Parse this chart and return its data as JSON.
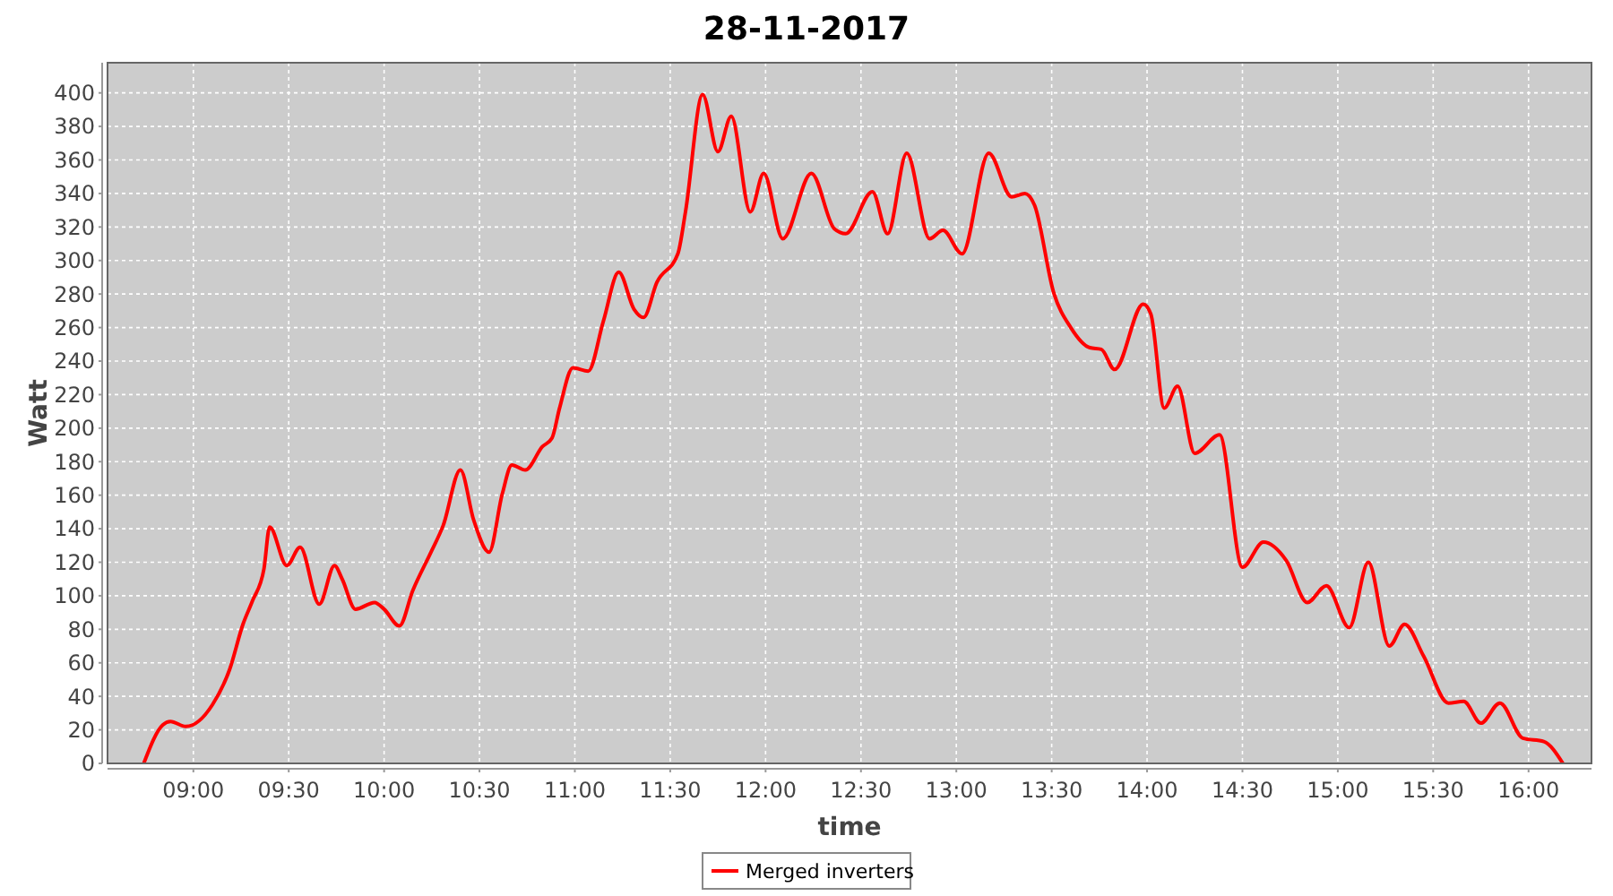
{
  "chart_data": {
    "type": "line",
    "title": "28-11-2017",
    "xlabel": "time",
    "ylabel": "Watt",
    "xlim": [
      8.55,
      16.33
    ],
    "ylim": [
      0,
      418
    ],
    "xticks": [
      {
        "value": 9,
        "label": "09:00"
      },
      {
        "value": 9.5,
        "label": "09:30"
      },
      {
        "value": 10,
        "label": "10:00"
      },
      {
        "value": 10.5,
        "label": "10:30"
      },
      {
        "value": 11,
        "label": "11:00"
      },
      {
        "value": 11.5,
        "label": "11:30"
      },
      {
        "value": 12,
        "label": "12:00"
      },
      {
        "value": 12.5,
        "label": "12:30"
      },
      {
        "value": 13,
        "label": "13:00"
      },
      {
        "value": 13.5,
        "label": "13:30"
      },
      {
        "value": 14,
        "label": "14:00"
      },
      {
        "value": 14.5,
        "label": "14:30"
      },
      {
        "value": 15,
        "label": "15:00"
      },
      {
        "value": 15.5,
        "label": "15:30"
      },
      {
        "value": 16,
        "label": "16:00"
      }
    ],
    "yticks": [
      0,
      20,
      40,
      60,
      80,
      100,
      120,
      140,
      160,
      180,
      200,
      220,
      240,
      260,
      280,
      300,
      320,
      340,
      360,
      380,
      400
    ],
    "grid": true,
    "legend": "bottom",
    "line_style": "solid",
    "marker": "none",
    "series": [
      {
        "name": "Merged inverters",
        "color": "#ff0000",
        "x": [
          8.74,
          8.84,
          8.88,
          8.96,
          9.1,
          9.19,
          9.26,
          9.31,
          9.37,
          9.4,
          9.49,
          9.56,
          9.66,
          9.74,
          9.78,
          9.85,
          9.95,
          10.0,
          10.08,
          10.15,
          10.25,
          10.31,
          10.4,
          10.47,
          10.55,
          10.62,
          10.67,
          10.74,
          10.83,
          10.88,
          10.92,
          10.99,
          11.07,
          11.15,
          11.23,
          11.31,
          11.36,
          11.43,
          11.54,
          11.58,
          11.67,
          11.75,
          11.82,
          11.92,
          11.99,
          12.09,
          12.24,
          12.36,
          12.42,
          12.56,
          12.64,
          12.74,
          12.86,
          12.93,
          13.03,
          13.17,
          13.29,
          13.36,
          13.41,
          13.51,
          13.6,
          13.7,
          13.76,
          13.83,
          13.98,
          14.02,
          14.09,
          14.16,
          14.25,
          14.38,
          14.5,
          14.61,
          14.73,
          14.84,
          14.94,
          15.06,
          15.16,
          15.27,
          15.35,
          15.45,
          15.58,
          15.66,
          15.75,
          15.85,
          15.97,
          16.08,
          16.18
        ],
        "values": [
          0,
          23,
          25,
          22,
          35,
          56,
          83,
          97,
          116,
          141,
          118,
          129,
          95,
          118,
          110,
          92,
          96,
          92,
          82,
          103,
          127,
          142,
          175,
          145,
          126,
          161,
          178,
          175,
          189,
          194,
          212,
          236,
          234,
          264,
          293,
          271,
          266,
          287,
          304,
          329,
          399,
          365,
          386,
          329,
          352,
          313,
          352,
          319,
          316,
          341,
          316,
          364,
          313,
          318,
          304,
          364,
          338,
          340,
          333,
          281,
          260,
          248,
          247,
          235,
          274,
          268,
          212,
          225,
          185,
          196,
          117,
          132,
          121,
          96,
          106,
          81,
          120,
          70,
          83,
          64,
          36,
          37,
          24,
          36,
          15,
          13,
          0
        ]
      }
    ]
  }
}
